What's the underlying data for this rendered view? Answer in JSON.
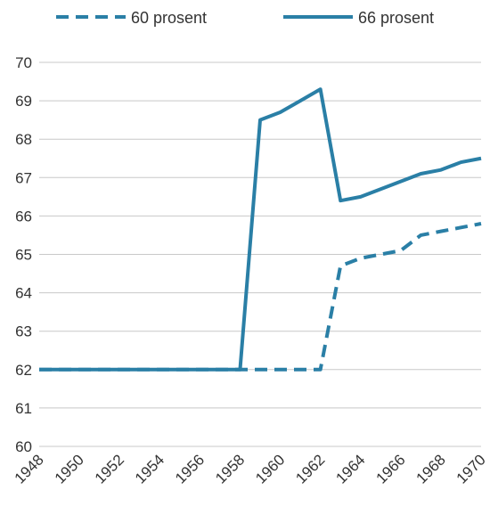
{
  "chart_data": {
    "type": "line",
    "title": "",
    "xlabel": "",
    "ylabel": "",
    "x": [
      1948,
      1949,
      1950,
      1951,
      1952,
      1953,
      1954,
      1955,
      1956,
      1957,
      1958,
      1959,
      1960,
      1961,
      1962,
      1963,
      1964,
      1965,
      1966,
      1967,
      1968,
      1969,
      1970
    ],
    "x_ticks": [
      "1948",
      "1950",
      "1952",
      "1954",
      "1956",
      "1958",
      "1960",
      "1962",
      "1964",
      "1966",
      "1968",
      "1970"
    ],
    "y_ticks": [
      "60",
      "61",
      "62",
      "63",
      "64",
      "65",
      "66",
      "67",
      "68",
      "69",
      "70"
    ],
    "ylim": [
      60,
      70
    ],
    "grid": true,
    "legend_position": "top",
    "series": [
      {
        "name": "60 prosent",
        "style": "dashed",
        "color": "#2a7fa6",
        "values": [
          62,
          62,
          62,
          62,
          62,
          62,
          62,
          62,
          62,
          62,
          62,
          62,
          62,
          62,
          62,
          64.7,
          64.9,
          65.0,
          65.1,
          65.5,
          65.6,
          65.7,
          65.8
        ]
      },
      {
        "name": "66 prosent",
        "style": "solid",
        "color": "#2a7fa6",
        "values": [
          62,
          62,
          62,
          62,
          62,
          62,
          62,
          62,
          62,
          62,
          62,
          68.5,
          68.7,
          69.0,
          69.3,
          66.4,
          66.5,
          66.7,
          66.9,
          67.1,
          67.2,
          67.4,
          67.5
        ]
      }
    ]
  }
}
